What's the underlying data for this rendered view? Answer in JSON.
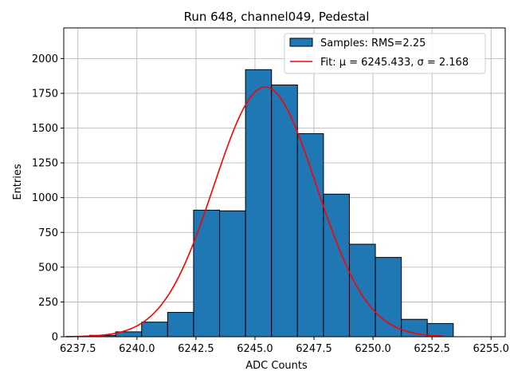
{
  "chart_data": {
    "type": "bar",
    "title": "Run 648, channel049, Pedestal",
    "xlabel": "ADC Counts",
    "ylabel": "Entries",
    "xlim": [
      6236.9,
      6255.6
    ],
    "ylim": [
      0,
      2220
    ],
    "grid": true,
    "legend_position": "top-right",
    "xticks": [
      6237.5,
      6240.0,
      6242.5,
      6245.0,
      6247.5,
      6250.0,
      6252.5,
      6255.0
    ],
    "xtick_labels": [
      "6237.5",
      "6240.0",
      "6242.5",
      "6245.0",
      "6247.5",
      "6250.0",
      "6252.5",
      "6255.0"
    ],
    "yticks": [
      0,
      250,
      500,
      750,
      1000,
      1250,
      1500,
      1750,
      2000
    ],
    "ytick_labels": [
      "0",
      "250",
      "500",
      "750",
      "1000",
      "1250",
      "1500",
      "1750",
      "2000"
    ],
    "bin_edges": [
      6238.0,
      6239.1,
      6240.2,
      6241.3,
      6242.4,
      6243.5,
      6244.6,
      6245.7,
      6246.8,
      6247.9,
      6249.0,
      6250.1,
      6251.2,
      6252.3,
      6253.4
    ],
    "values": [
      10,
      35,
      105,
      175,
      910,
      905,
      1920,
      1810,
      1460,
      1025,
      665,
      570,
      125,
      95,
      20
    ],
    "series": [
      {
        "name": "Samples: RMS=2.25",
        "kind": "histogram",
        "color": "#1f77b4",
        "edgecolor": "#000000"
      },
      {
        "name": "Fit: μ = 6245.433, σ = 2.168",
        "kind": "gaussian",
        "color": "#ff0000",
        "mu": 6245.433,
        "sigma": 2.168,
        "amplitude": 1795,
        "x_range": [
          6237.0,
          6253.0
        ]
      }
    ]
  },
  "colors": {
    "bar": "#1f77b4",
    "fit": "#ff0000",
    "grid": "#b0b0b0"
  }
}
